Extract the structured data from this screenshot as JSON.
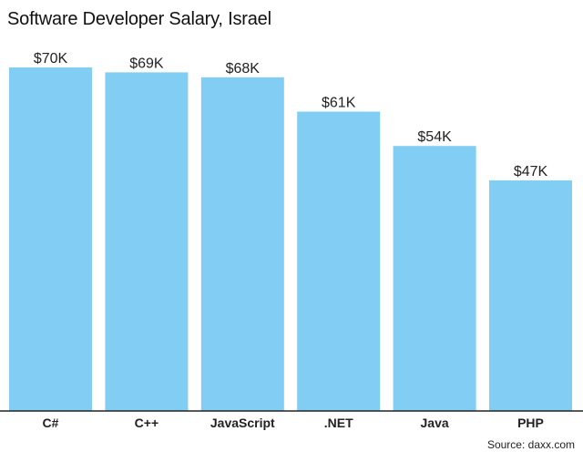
{
  "chart_data": {
    "type": "bar",
    "title": "Software Developer Salary, Israel",
    "categories": [
      "C#",
      "C++",
      "JavaScript",
      ".NET",
      "Java",
      "PHP"
    ],
    "values": [
      70,
      69,
      68,
      61,
      54,
      47
    ],
    "value_labels": [
      "$70K",
      "$69K",
      "$68K",
      "$61K",
      "$54K",
      "$47K"
    ],
    "xlabel": "",
    "ylabel": "",
    "ylim": [
      0,
      70
    ],
    "grid": false,
    "bar_color": "#81CDF4",
    "axis_color": "#222222",
    "source": "Source: daxx.com"
  }
}
